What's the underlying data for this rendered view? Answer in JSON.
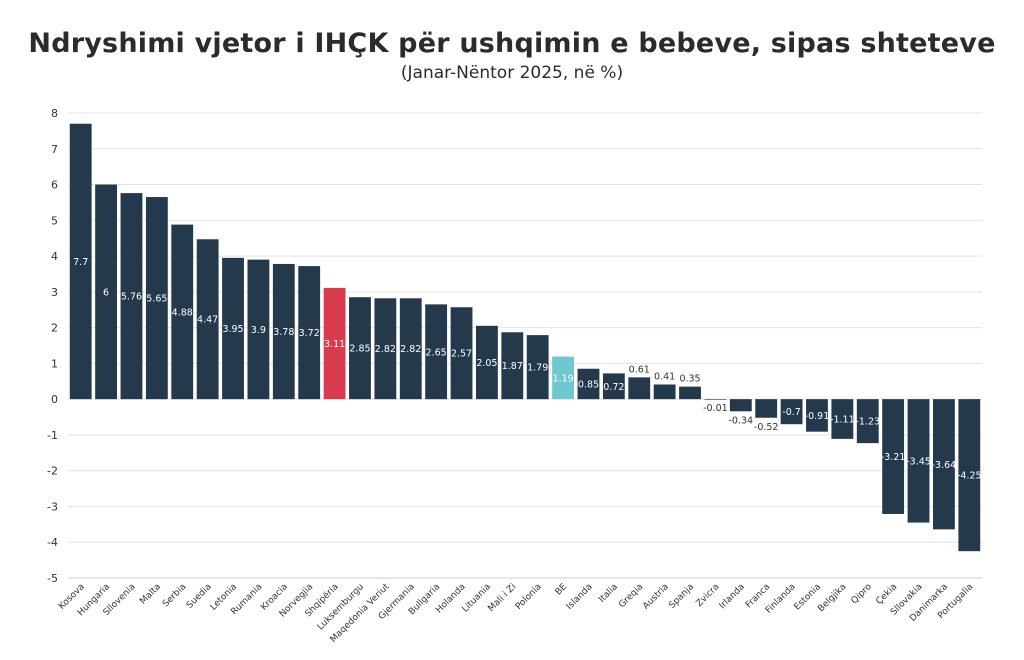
{
  "chart_data": {
    "type": "bar",
    "title": "Ndryshimi vjetor i IHÇK për ushqimin e bebeve, sipas shteteve",
    "subtitle": "(Janar-Nëntor 2025, në %)",
    "xlabel": "",
    "ylabel": "",
    "ylim": [
      -5,
      8
    ],
    "yticks": [
      "-5",
      "-4",
      "-3",
      "-2",
      "-1",
      "0",
      "1",
      "2",
      "3",
      "4",
      "5",
      "6",
      "7",
      "8"
    ],
    "grid": true,
    "legend": "none",
    "colors": {
      "default": "#24394b",
      "highlight_albania": "#d93b4e",
      "highlight_eu": "#6fc8d0"
    },
    "categories": [
      "Kosova",
      "Hungaria",
      "Sllovenia",
      "Malta",
      "Serbia",
      "Suedia",
      "Letonia",
      "Rumania",
      "Kroacia",
      "Norvegjia",
      "Shqipëria",
      "Luksemburgu",
      "Maqedonia Veriut",
      "Gjermania",
      "Bullgaria",
      "Holanda",
      "Lituania",
      "Mali i Zi",
      "Polonia",
      "BE",
      "Islanda",
      "Italia",
      "Greqia",
      "Austria",
      "Spanja",
      "Zvicra",
      "Irlanda",
      "Franca",
      "Finlanda",
      "Estonia",
      "Belgjika",
      "Qipro",
      "Çekia",
      "Sllovakia",
      "Danimarka",
      "Portugalia"
    ],
    "values": [
      7.7,
      6,
      5.76,
      5.65,
      4.88,
      4.47,
      3.95,
      3.9,
      3.78,
      3.72,
      3.11,
      2.85,
      2.82,
      2.82,
      2.65,
      2.57,
      2.05,
      1.87,
      1.79,
      1.19,
      0.85,
      0.72,
      0.61,
      0.41,
      0.35,
      -0.01,
      -0.34,
      -0.52,
      -0.7,
      -0.91,
      -1.11,
      -1.23,
      -3.21,
      -3.45,
      -3.64,
      -4.25
    ],
    "labels": [
      "7.7",
      "6",
      "5.76",
      "5.65",
      "4.88",
      "4.47",
      "3.95",
      "3.9",
      "3.78",
      "3.72",
      "3.11",
      "2.85",
      "2.82",
      "2.82",
      "2.65",
      "2.57",
      "2.05",
      "1.87",
      "1.79",
      "1.19",
      "0.85",
      "0.72",
      "0.61",
      "0.41",
      "0.35",
      "-0.01",
      "-0.34",
      "-0.52",
      "-0.7",
      "-0.91",
      "-1.11",
      "-1.23",
      "-3.21",
      "-3.45",
      "-3.64",
      "-4.25"
    ]
  }
}
